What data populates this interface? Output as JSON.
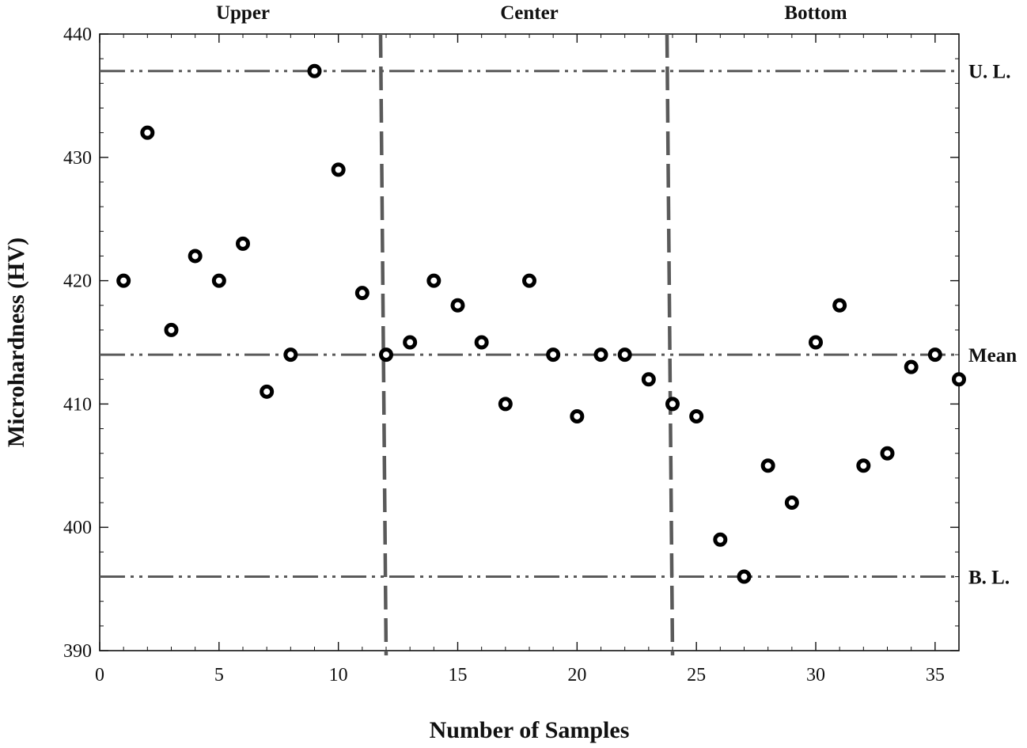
{
  "chart_data": {
    "type": "scatter",
    "xlabel": "Number of Samples",
    "ylabel": "Microhardness (HV)",
    "xlim": [
      0,
      36
    ],
    "ylim": [
      390,
      440
    ],
    "x_ticks": [
      0,
      5,
      10,
      15,
      20,
      25,
      30,
      35
    ],
    "y_ticks": [
      390,
      400,
      410,
      420,
      430,
      440
    ],
    "grid": false,
    "series": [
      {
        "marker": "open-circle",
        "x": [
          1,
          2,
          3,
          4,
          5,
          6,
          7,
          8,
          9,
          10,
          11,
          12,
          13,
          14,
          15,
          16,
          17,
          18,
          19,
          20,
          21,
          22,
          23,
          24,
          25,
          26,
          27,
          28,
          29,
          30,
          31,
          32,
          33,
          34,
          35,
          36
        ],
        "y": [
          420,
          432,
          416,
          422,
          420,
          423,
          411,
          414,
          437,
          429,
          419,
          414,
          415,
          420,
          418,
          415,
          410,
          420,
          414,
          409,
          414,
          414,
          412,
          410,
          409,
          399,
          396,
          405,
          402,
          415,
          418,
          405,
          406,
          413,
          414,
          412
        ]
      }
    ],
    "reference_lines": [
      {
        "label": "U. L.",
        "y": 437,
        "style": "dash-dot-dot"
      },
      {
        "label": "Mean",
        "y": 414,
        "style": "dash-dot-dot"
      },
      {
        "label": "B. L.",
        "y": 396,
        "style": "dash-dot-dot"
      }
    ],
    "region_dividers": [
      12,
      24
    ],
    "regions": [
      {
        "label": "Upper",
        "x_center": 6
      },
      {
        "label": "Center",
        "x_center": 18
      },
      {
        "label": "Bottom",
        "x_center": 30
      }
    ],
    "colors": {
      "markers": "#000000",
      "reference_lines": "#5a5a5a",
      "dividers": "#5a5a5a"
    }
  }
}
